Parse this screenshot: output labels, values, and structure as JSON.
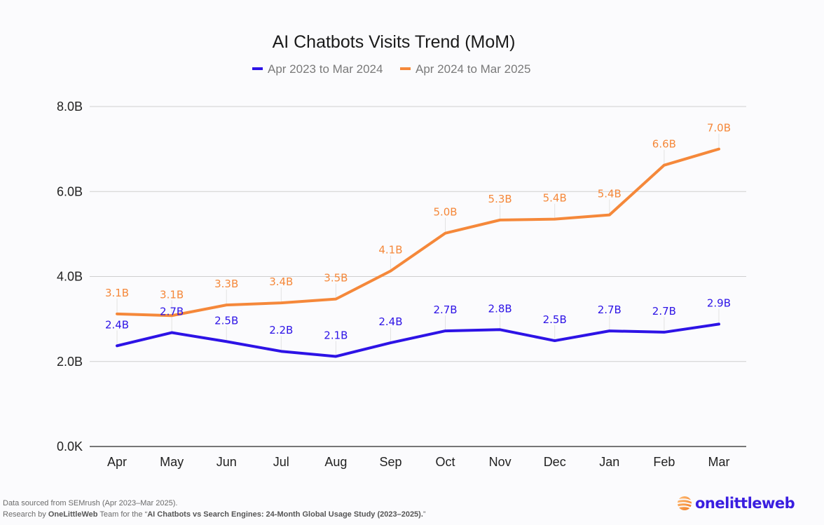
{
  "chart_data": {
    "type": "line",
    "title": "AI Chatbots Visits Trend (MoM)",
    "xlabel": "",
    "ylabel": "",
    "categories": [
      "Apr",
      "May",
      "Jun",
      "Jul",
      "Aug",
      "Sep",
      "Oct",
      "Nov",
      "Dec",
      "Jan",
      "Feb",
      "Mar"
    ],
    "ylim": [
      0,
      8
    ],
    "yunit": "B",
    "yticks": [
      {
        "value": 0,
        "label": "0.0K"
      },
      {
        "value": 2,
        "label": "2.0B"
      },
      {
        "value": 4,
        "label": "4.0B"
      },
      {
        "value": 6,
        "label": "6.0B"
      },
      {
        "value": 8,
        "label": "8.0B"
      }
    ],
    "grid": true,
    "legend_position": "top-center",
    "series": [
      {
        "name": "Apr 2023 to Mar 2024",
        "color": "#2d13e6",
        "values": [
          2.37,
          2.68,
          2.47,
          2.24,
          2.12,
          2.44,
          2.72,
          2.75,
          2.49,
          2.72,
          2.69,
          2.88
        ],
        "labels": [
          "2.4B",
          "2.7B",
          "2.5B",
          "2.2B",
          "2.1B",
          "2.4B",
          "2.7B",
          "2.8B",
          "2.5B",
          "2.7B",
          "2.7B",
          "2.9B"
        ]
      },
      {
        "name": "Apr 2024 to Mar 2025",
        "color": "#f5883a",
        "values": [
          3.12,
          3.08,
          3.33,
          3.38,
          3.47,
          4.13,
          5.02,
          5.33,
          5.35,
          5.45,
          6.62,
          7.0
        ],
        "labels": [
          "3.1B",
          "3.1B",
          "3.3B",
          "3.4B",
          "3.5B",
          "4.1B",
          "5.0B",
          "5.3B",
          "5.4B",
          "5.4B",
          "6.6B",
          "7.0B"
        ]
      }
    ]
  },
  "footer": {
    "line1": "Data sourced from SEMrush (Apr 2023–Mar 2025).",
    "line2_prefix": "Research by ",
    "line2_brand": "OneLittleWeb",
    "line2_middle": " Team for the “",
    "line2_study": "AI Chatbots vs Search Engines: 24-Month Global Usage Study (2023–2025).",
    "line2_suffix": "”"
  },
  "logo": {
    "text": "onelittleweb",
    "icon": "globe-swirl-icon"
  }
}
